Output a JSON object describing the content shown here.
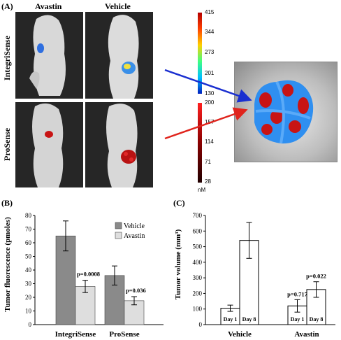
{
  "panel_a": {
    "label": "(A)",
    "col_avastin": "Avastin",
    "col_vehicle": "Vehicle",
    "row_integrisense": "IntegriSense",
    "row_prosense": "ProSense",
    "scale_top_ticks": [
      "415",
      "344",
      "273",
      "201",
      "130"
    ],
    "scale_bottom_ticks": [
      "200",
      "157",
      "114",
      "71",
      "28"
    ],
    "unit": "nM",
    "colors": {
      "blue_arrow": "#1a2fd0",
      "red_arrow": "#e0241c",
      "blue_signal": "#2f8ff0",
      "red_signal": "#c81414"
    }
  },
  "chart_data": [
    {
      "panel": "(B)",
      "type": "bar",
      "ylabel": "Tumor fluorescence (pmoles)",
      "ylim": [
        0,
        80
      ],
      "yticks": [
        0,
        10,
        20,
        30,
        40,
        50,
        60,
        70,
        80
      ],
      "categories": [
        "IntegriSense",
        "ProSense"
      ],
      "legend": [
        "Vehicle",
        "Avastin"
      ],
      "legend_position": "top-right",
      "series": [
        {
          "name": "Vehicle",
          "values": [
            65,
            36
          ],
          "errors": [
            11,
            7
          ],
          "color": "#8a8a8a"
        },
        {
          "name": "Avastin",
          "values": [
            28,
            17.5
          ],
          "errors": [
            4.5,
            3
          ],
          "color": "#dedede"
        }
      ],
      "annotations": [
        "p=0.0008",
        "p=0.036"
      ]
    },
    {
      "panel": "(C)",
      "type": "bar",
      "ylabel": "Tumor volume (mm³)",
      "ylim": [
        0,
        700
      ],
      "yticks": [
        0,
        100,
        200,
        300,
        400,
        500,
        600,
        700
      ],
      "categories": [
        "Vehicle",
        "Avastin"
      ],
      "bars": [
        {
          "group": "Vehicle",
          "label": "Day 1",
          "value": 105,
          "error": 20
        },
        {
          "group": "Vehicle",
          "label": "Day 8",
          "value": 540,
          "error": 115
        },
        {
          "group": "Avastin",
          "label": "Day 1",
          "value": 120,
          "error": 40
        },
        {
          "group": "Avastin",
          "label": "Day 8",
          "value": 225,
          "error": 50
        }
      ],
      "annotations": [
        "p=0.717",
        "p=0.022"
      ]
    }
  ]
}
